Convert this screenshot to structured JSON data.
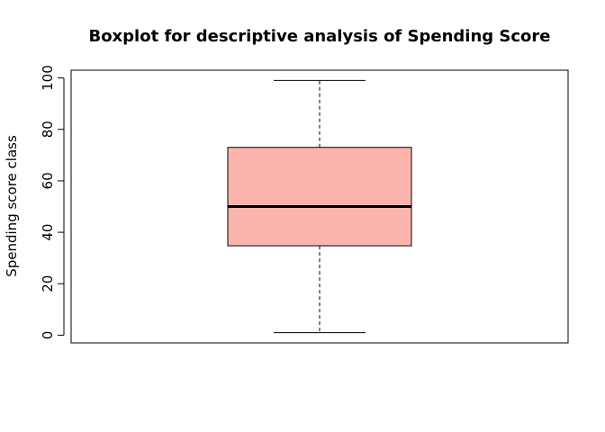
{
  "chart_data": {
    "type": "boxplot",
    "title": "Boxplot for descriptive analysis of Spending Score",
    "xlabel": "",
    "ylabel": "Spending score class",
    "ylim": [
      -3,
      103
    ],
    "yticks": [
      0,
      20,
      40,
      60,
      80,
      100
    ],
    "box": {
      "min": 1,
      "q1": 34.75,
      "median": 50,
      "q3": 73,
      "max": 99
    },
    "box_fill": "#fbb4ae",
    "grid": false
  }
}
